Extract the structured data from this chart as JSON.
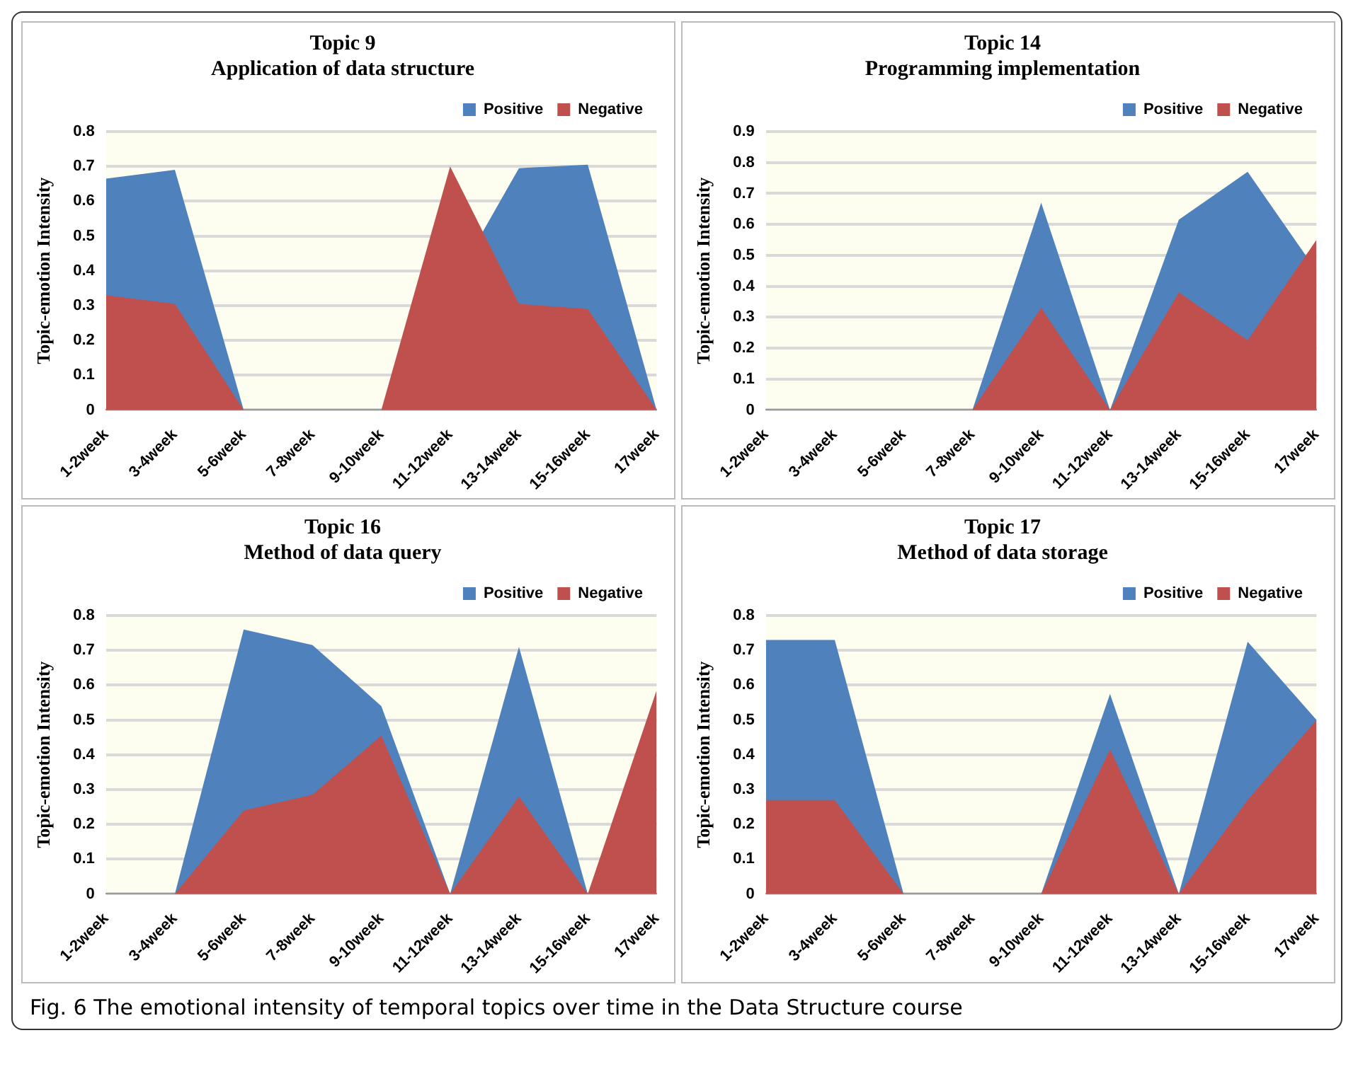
{
  "chart_data": [
    {
      "type": "area",
      "title": "Topic 9",
      "subtitle": "Application of data structure",
      "ylabel": "Topic-emotion Intensity",
      "categories": [
        "1-2week",
        "3-4week",
        "5-6week",
        "7-8week",
        "9-10week",
        "11-12week",
        "13-14week",
        "15-16week",
        "17week"
      ],
      "series": [
        {
          "name": "Positive",
          "color": "#4f81bd",
          "values": [
            0.665,
            0.69,
            0,
            0,
            0,
            null,
            0.695,
            0.705,
            0
          ]
        },
        {
          "name": "Negative",
          "color": "#c0504d",
          "values": [
            0.33,
            0.305,
            0,
            0,
            0,
            0.7,
            0.305,
            0.29,
            0
          ]
        }
      ],
      "ylim": [
        0,
        0.8
      ],
      "yticks": [
        0,
        0.1,
        0.2,
        0.3,
        0.4,
        0.5,
        0.6,
        0.7,
        0.8
      ],
      "grid": "y",
      "legend": "top right"
    },
    {
      "type": "area",
      "title": "Topic 14",
      "subtitle": "Programming implementation",
      "ylabel": "Topic-emotion Intensity",
      "categories": [
        "1-2week",
        "3-4week",
        "5-6week",
        "7-8week",
        "9-10week",
        "11-12week",
        "13-14week",
        "15-16week",
        "17week"
      ],
      "series": [
        {
          "name": "Positive",
          "color": "#4f81bd",
          "values": [
            0,
            0,
            0,
            0,
            0.67,
            0,
            0.615,
            0.77,
            0.45
          ]
        },
        {
          "name": "Negative",
          "color": "#c0504d",
          "values": [
            0,
            0,
            0,
            0,
            0.33,
            0,
            0.38,
            0.225,
            0.55
          ]
        }
      ],
      "ylim": [
        0,
        0.9
      ],
      "yticks": [
        0,
        0.1,
        0.2,
        0.3,
        0.4,
        0.5,
        0.6,
        0.7,
        0.8,
        0.9
      ],
      "grid": "y",
      "legend": "top right"
    },
    {
      "type": "area",
      "title": "Topic 16",
      "subtitle": "Method of data query",
      "ylabel": "Topic-emotion Intensity",
      "categories": [
        "1-2week",
        "3-4week",
        "5-6week",
        "7-8week",
        "9-10week",
        "11-12week",
        "13-14week",
        "15-16week",
        "17week"
      ],
      "series": [
        {
          "name": "Positive",
          "color": "#4f81bd",
          "values": [
            0,
            0,
            0.76,
            0.715,
            0.54,
            0,
            0.71,
            0,
            null
          ]
        },
        {
          "name": "Negative",
          "color": "#c0504d",
          "values": [
            0,
            0,
            0.24,
            0.285,
            0.455,
            0,
            0.28,
            0,
            0.585
          ]
        }
      ],
      "ylim": [
        0,
        0.8
      ],
      "yticks": [
        0,
        0.1,
        0.2,
        0.3,
        0.4,
        0.5,
        0.6,
        0.7,
        0.8
      ],
      "grid": "y",
      "legend": "top right"
    },
    {
      "type": "area",
      "title": "Topic 17",
      "subtitle": "Method of data storage",
      "ylabel": "Topic-emotion Intensity",
      "categories": [
        "1-2week",
        "3-4week",
        "5-6week",
        "7-8week",
        "9-10week",
        "11-12week",
        "13-14week",
        "15-16week",
        "17week"
      ],
      "series": [
        {
          "name": "Positive",
          "color": "#4f81bd",
          "values": [
            0.73,
            0.73,
            0,
            0,
            0,
            0.575,
            0,
            0.725,
            0.5
          ]
        },
        {
          "name": "Negative",
          "color": "#c0504d",
          "values": [
            0.27,
            0.27,
            0,
            0,
            0,
            0.415,
            0,
            0.27,
            0.5
          ]
        }
      ],
      "ylim": [
        0,
        0.8
      ],
      "yticks": [
        0,
        0.1,
        0.2,
        0.3,
        0.4,
        0.5,
        0.6,
        0.7,
        0.8
      ],
      "grid": "y",
      "legend": "top right"
    },
    {
      "type": "other",
      "annotations": [
        "Fig. 6 The emotional intensity of temporal topics over time in the Data Structure course"
      ]
    }
  ]
}
